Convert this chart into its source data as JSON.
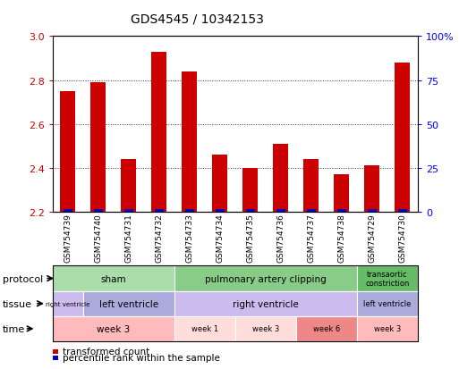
{
  "title": "GDS4545 / 10342153",
  "samples": [
    "GSM754739",
    "GSM754740",
    "GSM754731",
    "GSM754732",
    "GSM754733",
    "GSM754734",
    "GSM754735",
    "GSM754736",
    "GSM754737",
    "GSM754738",
    "GSM754729",
    "GSM754730"
  ],
  "red_values": [
    2.75,
    2.79,
    2.44,
    2.93,
    2.84,
    2.46,
    2.4,
    2.51,
    2.44,
    2.37,
    2.41,
    2.88
  ],
  "blue_heights": [
    0.012,
    0.012,
    0.012,
    0.012,
    0.012,
    0.012,
    0.012,
    0.012,
    0.012,
    0.012,
    0.012,
    0.012
  ],
  "ymin": 2.2,
  "ymax": 3.0,
  "yticks": [
    2.2,
    2.4,
    2.6,
    2.8,
    3.0
  ],
  "y2ticks": [
    0,
    25,
    50,
    75,
    100
  ],
  "y2labels": [
    "0",
    "25",
    "50",
    "75",
    "100%"
  ],
  "protocol_groups": [
    {
      "label": "sham",
      "start": 0,
      "end": 4,
      "color": "#aaddaa"
    },
    {
      "label": "pulmonary artery clipping",
      "start": 4,
      "end": 10,
      "color": "#88cc88"
    },
    {
      "label": "transaortic\nconstriction",
      "start": 10,
      "end": 12,
      "color": "#66bb66"
    }
  ],
  "tissue_groups": [
    {
      "label": "right ventricle",
      "start": 0,
      "end": 1,
      "color": "#ccbbee"
    },
    {
      "label": "left ventricle",
      "start": 1,
      "end": 4,
      "color": "#aaaadd"
    },
    {
      "label": "right ventricle",
      "start": 4,
      "end": 10,
      "color": "#ccbbee"
    },
    {
      "label": "left ventricle",
      "start": 10,
      "end": 12,
      "color": "#aaaadd"
    }
  ],
  "time_groups": [
    {
      "label": "week 3",
      "start": 0,
      "end": 4,
      "color": "#ffbbbb"
    },
    {
      "label": "week 1",
      "start": 4,
      "end": 6,
      "color": "#ffdddd"
    },
    {
      "label": "week 3",
      "start": 6,
      "end": 8,
      "color": "#ffdddd"
    },
    {
      "label": "week 6",
      "start": 8,
      "end": 10,
      "color": "#ee8888"
    },
    {
      "label": "week 3",
      "start": 10,
      "end": 12,
      "color": "#ffbbbb"
    }
  ],
  "bar_width": 0.5,
  "red_color": "#cc0000",
  "blue_color": "#0000cc",
  "legend_red": "transformed count",
  "legend_blue": "percentile rank within the sample",
  "row_labels": [
    "protocol",
    "tissue",
    "time"
  ],
  "background_color": "#ffffff",
  "grid_color": "#333333",
  "tick_label_bg": "#dddddd",
  "xticklabel_size": 6.5
}
